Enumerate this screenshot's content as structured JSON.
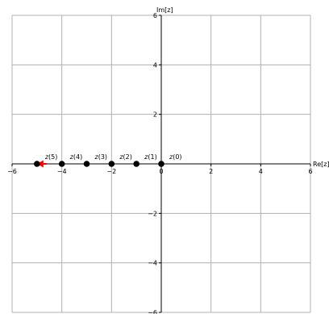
{
  "chart_data": {
    "type": "scatter",
    "xlabel": "Re[z]",
    "ylabel": "Im[z]",
    "xlim": [
      -6,
      6
    ],
    "ylim": [
      -6,
      6
    ],
    "grid": true,
    "x_ticks": [
      -6,
      -4,
      -2,
      0,
      2,
      4,
      6
    ],
    "y_ticks": [
      -6,
      -4,
      -2,
      2,
      4,
      6
    ],
    "points": [
      {
        "label": "z(0)",
        "x": 0,
        "y": 0
      },
      {
        "label": "z(1)",
        "x": -1,
        "y": 0
      },
      {
        "label": "z(2)",
        "x": -2,
        "y": 0
      },
      {
        "label": "z(3)",
        "x": -3,
        "y": 0
      },
      {
        "label": "z(4)",
        "x": -4,
        "y": 0
      },
      {
        "label": "z(5)",
        "x": -5,
        "y": 0
      }
    ],
    "point_color": "#000000",
    "arrow": {
      "x_from": -4.6,
      "x_to": -5.0,
      "y": 0,
      "color": "#ff0000"
    },
    "grid_color": "#b0b0b0",
    "axis_color": "#000000"
  }
}
